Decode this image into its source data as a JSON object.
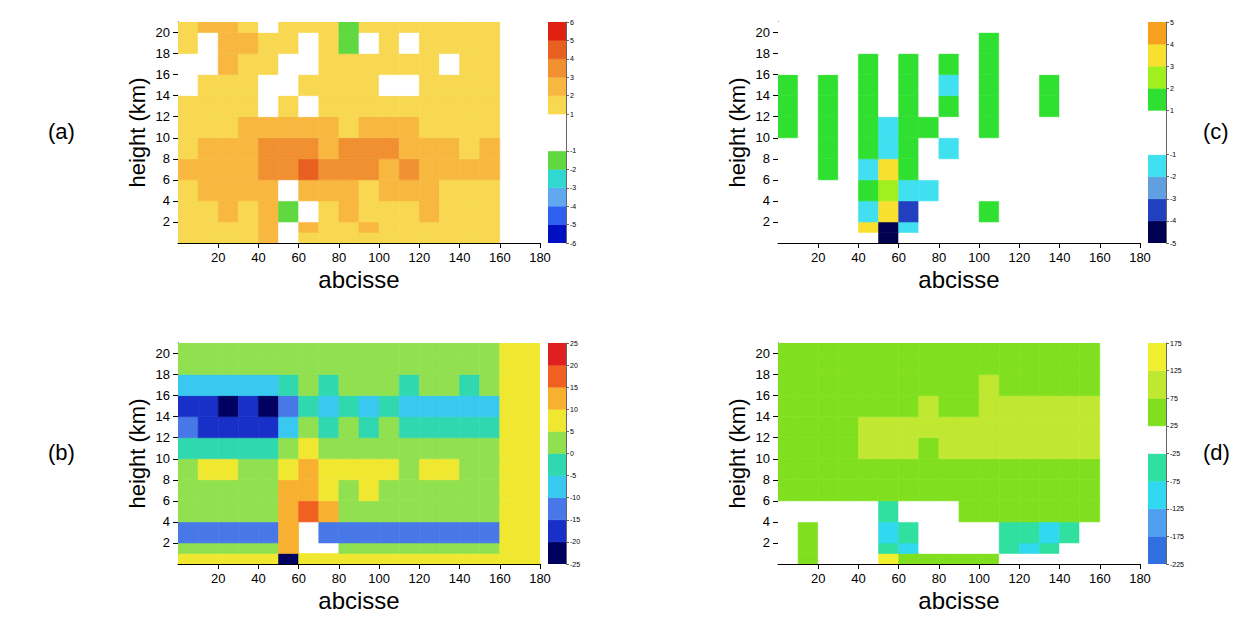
{
  "chart_data": [
    {
      "type": "heatmap",
      "panel_label": "(a)",
      "x_label": "abcisse",
      "y_label": "height (km)",
      "xlim": [
        0,
        180
      ],
      "xticks": [
        20,
        40,
        60,
        80,
        100,
        120,
        140,
        160,
        180
      ],
      "ylim": [
        0,
        21
      ],
      "yticks": [
        2,
        4,
        6,
        8,
        10,
        12,
        14,
        16,
        18,
        20
      ],
      "x_bins": [
        0,
        10,
        20,
        30,
        40,
        50,
        60,
        70,
        80,
        90,
        100,
        110,
        120,
        130,
        140,
        150,
        160
      ],
      "y_bins": [
        0,
        1,
        2,
        4,
        6,
        8,
        10,
        12,
        14,
        16,
        18,
        20,
        21
      ],
      "z": [
        [
          1.5,
          1.5,
          1.5,
          1.5,
          2.5,
          0,
          1.5,
          1.5,
          1.5,
          1.5,
          1.5,
          1.5,
          1.5,
          1.5,
          1.5,
          1.5
        ],
        [
          1.5,
          1.5,
          1.5,
          1.5,
          2.5,
          0,
          2.5,
          1.5,
          1.5,
          2.5,
          1.5,
          1.5,
          1.5,
          1.5,
          1.5,
          1.5
        ],
        [
          1.5,
          1.5,
          2.5,
          1.5,
          2.5,
          -1.5,
          0,
          1.5,
          2.5,
          1.5,
          1.5,
          1.5,
          2.5,
          1.5,
          1.5,
          1.5
        ],
        [
          1.5,
          2.5,
          2.5,
          2.5,
          2.5,
          0,
          2.5,
          2.5,
          2.5,
          1.5,
          2.5,
          2.5,
          2.5,
          1.5,
          1.5,
          1.5
        ],
        [
          2.5,
          2.5,
          2.5,
          2.5,
          3.5,
          3.5,
          4.5,
          3.5,
          3.5,
          3.5,
          2.5,
          3.5,
          2.5,
          2.5,
          2.5,
          2.5
        ],
        [
          1.5,
          2.5,
          2.5,
          2.5,
          3.5,
          3.5,
          3.5,
          2.5,
          3.5,
          3.5,
          3.5,
          2.5,
          2.5,
          2.5,
          1.5,
          2.5
        ],
        [
          1.5,
          1.5,
          1.5,
          2.5,
          2.5,
          2.5,
          2.5,
          2.5,
          1.5,
          2.5,
          2.5,
          2.5,
          1.5,
          1.5,
          1.5,
          1.5
        ],
        [
          1.5,
          1.5,
          1.5,
          1.5,
          0,
          1.5,
          0,
          1.5,
          1.5,
          1.5,
          1.5,
          1.5,
          1.5,
          1.5,
          1.5,
          1.5
        ],
        [
          0,
          1.5,
          1.5,
          1.5,
          0,
          0,
          1.5,
          1.5,
          1.5,
          1.5,
          0,
          0,
          1.5,
          1.5,
          1.5,
          1.5
        ],
        [
          0,
          0,
          2.5,
          1.5,
          1.5,
          0,
          0,
          1.5,
          1.5,
          1.5,
          1.5,
          1.5,
          1.5,
          0,
          1.5,
          1.5
        ],
        [
          1.5,
          0,
          2.5,
          2.5,
          1.5,
          1.5,
          0,
          1.5,
          -1.5,
          0,
          1.5,
          0,
          1.5,
          1.5,
          1.5,
          1.5
        ],
        [
          1.5,
          2.5,
          2.5,
          1.5,
          0,
          1.5,
          1.5,
          1.5,
          -1.5,
          1.5,
          1.5,
          1.5,
          1.5,
          1.5,
          1.5,
          1.5
        ]
      ],
      "colorbar": {
        "range": [
          -6,
          6
        ],
        "ticks": [
          -6,
          -5,
          -4,
          -3,
          -2,
          -1,
          1,
          2,
          3,
          4,
          5,
          6
        ],
        "levels": [
          -6,
          -5,
          -4,
          -3,
          -2,
          -1,
          1,
          2,
          3,
          4,
          5,
          6
        ],
        "colors": [
          "#0010c0",
          "#3060f0",
          "#60a8f0",
          "#30d8d0",
          "#60d840",
          "#ffffff",
          "#f8d850",
          "#f8b840",
          "#f09030",
          "#e86020",
          "#e02010"
        ]
      }
    },
    {
      "type": "heatmap",
      "panel_label": "(b)",
      "x_label": "abcisse",
      "y_label": "height (km)",
      "xlim": [
        0,
        180
      ],
      "xticks": [
        20,
        40,
        60,
        80,
        100,
        120,
        140,
        160,
        180
      ],
      "ylim": [
        0,
        21
      ],
      "yticks": [
        2,
        4,
        6,
        8,
        10,
        12,
        14,
        16,
        18,
        20
      ],
      "x_bins": [
        0,
        10,
        20,
        30,
        40,
        50,
        60,
        70,
        80,
        90,
        100,
        110,
        120,
        130,
        140,
        150,
        160,
        170,
        180
      ],
      "y_bins": [
        0,
        1,
        2,
        4,
        6,
        8,
        10,
        12,
        14,
        16,
        18,
        20,
        21
      ],
      "z": [
        [
          7,
          7,
          7,
          7,
          7,
          -22,
          7,
          7,
          7,
          7,
          7,
          7,
          7,
          7,
          7,
          7,
          7,
          7
        ],
        [
          2,
          2,
          2,
          2,
          2,
          12,
          null,
          null,
          2,
          2,
          2,
          2,
          2,
          2,
          2,
          2,
          7,
          7
        ],
        [
          -12,
          -12,
          -12,
          -12,
          -12,
          12,
          null,
          -12,
          -12,
          -12,
          -12,
          -12,
          -12,
          -12,
          -12,
          -12,
          7,
          7
        ],
        [
          2,
          2,
          2,
          2,
          2,
          12,
          17,
          12,
          2,
          2,
          2,
          2,
          2,
          2,
          2,
          2,
          7,
          7
        ],
        [
          2,
          2,
          2,
          2,
          2,
          12,
          12,
          7,
          2,
          7,
          2,
          2,
          2,
          2,
          2,
          2,
          7,
          7
        ],
        [
          2,
          7,
          7,
          2,
          2,
          7,
          12,
          7,
          7,
          7,
          7,
          2,
          7,
          7,
          2,
          2,
          7,
          7
        ],
        [
          -3,
          -3,
          -3,
          -3,
          -3,
          2,
          7,
          2,
          2,
          2,
          2,
          2,
          2,
          2,
          2,
          2,
          7,
          7
        ],
        [
          -12,
          -17,
          -17,
          -17,
          -17,
          -7,
          2,
          -3,
          2,
          -3,
          2,
          -3,
          -3,
          -3,
          -3,
          -3,
          7,
          7
        ],
        [
          -17,
          -17,
          -22,
          -17,
          -22,
          -12,
          -3,
          -7,
          -3,
          -7,
          -3,
          -7,
          -7,
          -7,
          -7,
          -7,
          7,
          7
        ],
        [
          -7,
          -7,
          -7,
          -7,
          -7,
          -3,
          2,
          -3,
          2,
          2,
          2,
          -3,
          2,
          2,
          -3,
          2,
          7,
          7
        ],
        [
          2,
          2,
          2,
          2,
          2,
          2,
          2,
          2,
          2,
          2,
          2,
          2,
          2,
          2,
          2,
          2,
          7,
          7
        ],
        [
          2,
          2,
          2,
          2,
          2,
          2,
          2,
          2,
          2,
          2,
          2,
          2,
          2,
          2,
          2,
          2,
          7,
          7
        ]
      ],
      "colorbar": {
        "range": [
          -25,
          25
        ],
        "ticks": [
          -25,
          -20,
          -15,
          -10,
          -5,
          0,
          5,
          10,
          15,
          20,
          25
        ],
        "levels": [
          -25,
          -20,
          -15,
          -10,
          -5,
          0,
          5,
          10,
          15,
          20,
          25
        ],
        "colors": [
          "#000060",
          "#1830c8",
          "#4878e8",
          "#38c8f0",
          "#30d8b0",
          "#90e050",
          "#f0e830",
          "#f8b030",
          "#f06020",
          "#e02020"
        ]
      }
    },
    {
      "type": "heatmap",
      "panel_label": "(c)",
      "x_label": "abcisse",
      "y_label": "height (km)",
      "xlim": [
        0,
        180
      ],
      "xticks": [
        20,
        40,
        60,
        80,
        100,
        120,
        140,
        160,
        180
      ],
      "ylim": [
        0,
        21
      ],
      "yticks": [
        2,
        4,
        6,
        8,
        10,
        12,
        14,
        16,
        18,
        20
      ],
      "x_bins": [
        0,
        10,
        20,
        30,
        40,
        50,
        60,
        70,
        80,
        90,
        100,
        110,
        120,
        130,
        140,
        150,
        160
      ],
      "y_bins": [
        0,
        1,
        2,
        4,
        6,
        8,
        10,
        12,
        14,
        16,
        18,
        20,
        21
      ],
      "z": [
        [
          0,
          0,
          0,
          0,
          0,
          -4.5,
          0,
          0,
          0,
          0,
          0,
          0,
          0,
          0,
          0,
          0
        ],
        [
          0,
          0,
          0,
          0,
          3.5,
          -4.5,
          -1.5,
          0,
          0,
          0,
          0,
          0,
          0,
          0,
          0,
          0
        ],
        [
          0,
          0,
          0,
          0,
          -1.5,
          3.5,
          -3.5,
          0,
          0,
          0,
          1.5,
          0,
          0,
          0,
          0,
          0
        ],
        [
          0,
          0,
          0,
          0,
          1.5,
          2.5,
          -1.5,
          -1.5,
          0,
          0,
          0,
          0,
          0,
          0,
          0,
          0
        ],
        [
          0,
          0,
          1.5,
          0,
          -1.5,
          3.5,
          1.5,
          0,
          0,
          0,
          0,
          0,
          0,
          0,
          0,
          0
        ],
        [
          0,
          0,
          1.5,
          0,
          1.5,
          -1.5,
          1.5,
          0,
          -1.5,
          0,
          0,
          0,
          0,
          0,
          0,
          0
        ],
        [
          1.5,
          0,
          1.5,
          0,
          1.5,
          -1.5,
          1.5,
          1.5,
          0,
          0,
          1.5,
          0,
          0,
          0,
          0,
          0
        ],
        [
          1.5,
          0,
          1.5,
          0,
          1.5,
          0,
          1.5,
          0,
          1.5,
          0,
          1.5,
          0,
          0,
          1.5,
          0,
          0
        ],
        [
          1.5,
          0,
          1.5,
          0,
          1.5,
          0,
          1.5,
          0,
          -1.5,
          0,
          1.5,
          0,
          0,
          1.5,
          0,
          0
        ],
        [
          0,
          0,
          0,
          0,
          1.5,
          0,
          1.5,
          0,
          1.5,
          0,
          1.5,
          0,
          0,
          0,
          0,
          0
        ],
        [
          0,
          0,
          0,
          0,
          0,
          0,
          0,
          0,
          0,
          0,
          1.5,
          0,
          0,
          0,
          0,
          0
        ],
        [
          0,
          0,
          0,
          0,
          0,
          0,
          0,
          0,
          0,
          0,
          0,
          0,
          0,
          0,
          0,
          0
        ]
      ],
      "colorbar": {
        "range": [
          -5,
          5
        ],
        "ticks": [
          -5,
          -4,
          -3,
          -2,
          -1,
          1,
          2,
          3,
          4,
          5
        ],
        "levels": [
          -5,
          -4,
          -3,
          -2,
          -1,
          1,
          2,
          3,
          4,
          5
        ],
        "colors": [
          "#000050",
          "#2040c0",
          "#60a0e0",
          "#40e0f0",
          "#ffffff",
          "#30e030",
          "#a0f020",
          "#f8e030",
          "#f8a020"
        ]
      }
    },
    {
      "type": "heatmap",
      "panel_label": "(d)",
      "x_label": "abcisse",
      "y_label": "height (km)",
      "xlim": [
        0,
        180
      ],
      "xticks": [
        20,
        40,
        60,
        80,
        100,
        120,
        140,
        160,
        180
      ],
      "ylim": [
        0,
        21
      ],
      "yticks": [
        2,
        4,
        6,
        8,
        10,
        12,
        14,
        16,
        18,
        20
      ],
      "x_bins": [
        0,
        10,
        20,
        30,
        40,
        50,
        60,
        70,
        80,
        90,
        100,
        110,
        120,
        130,
        140,
        150,
        160
      ],
      "y_bins": [
        0,
        1,
        2,
        4,
        6,
        8,
        10,
        12,
        14,
        16,
        18,
        20,
        21
      ],
      "z": [
        [
          0,
          50,
          0,
          0,
          0,
          150,
          50,
          50,
          50,
          50,
          50,
          0,
          0,
          0,
          0,
          0
        ],
        [
          0,
          50,
          0,
          0,
          0,
          -50,
          -100,
          0,
          0,
          0,
          0,
          -50,
          -100,
          -50,
          0,
          0
        ],
        [
          0,
          50,
          0,
          0,
          0,
          -100,
          -50,
          0,
          0,
          0,
          0,
          -50,
          -50,
          -100,
          -50,
          0
        ],
        [
          0,
          0,
          0,
          0,
          0,
          -50,
          0,
          0,
          0,
          50,
          50,
          50,
          50,
          50,
          50,
          50
        ],
        [
          50,
          50,
          50,
          50,
          50,
          50,
          50,
          50,
          50,
          50,
          50,
          50,
          50,
          50,
          50,
          50
        ],
        [
          50,
          50,
          50,
          50,
          50,
          50,
          50,
          50,
          50,
          50,
          50,
          50,
          50,
          50,
          50,
          50
        ],
        [
          50,
          50,
          50,
          50,
          100,
          100,
          100,
          50,
          100,
          100,
          100,
          100,
          100,
          100,
          100,
          100
        ],
        [
          50,
          50,
          50,
          50,
          100,
          100,
          100,
          100,
          100,
          100,
          100,
          100,
          100,
          100,
          100,
          100
        ],
        [
          50,
          50,
          50,
          50,
          50,
          50,
          50,
          100,
          50,
          50,
          100,
          100,
          100,
          100,
          100,
          100
        ],
        [
          50,
          50,
          50,
          50,
          50,
          50,
          50,
          50,
          50,
          50,
          100,
          50,
          50,
          50,
          50,
          50
        ],
        [
          50,
          50,
          50,
          50,
          50,
          50,
          50,
          50,
          50,
          50,
          50,
          50,
          50,
          50,
          50,
          50
        ],
        [
          50,
          50,
          50,
          50,
          50,
          50,
          50,
          50,
          50,
          50,
          50,
          50,
          50,
          50,
          50,
          50
        ]
      ],
      "colorbar": {
        "range": [
          -225,
          175
        ],
        "ticks": [
          -225,
          -175,
          -125,
          -75,
          -25,
          25,
          75,
          125,
          175
        ],
        "levels": [
          -225,
          -175,
          -125,
          -75,
          -25,
          25,
          75,
          125,
          175
        ],
        "colors": [
          "#3070e0",
          "#50a0f0",
          "#30d8f0",
          "#30e0a0",
          "#ffffff",
          "#80e020",
          "#c0e830",
          "#f0f030"
        ]
      }
    }
  ]
}
